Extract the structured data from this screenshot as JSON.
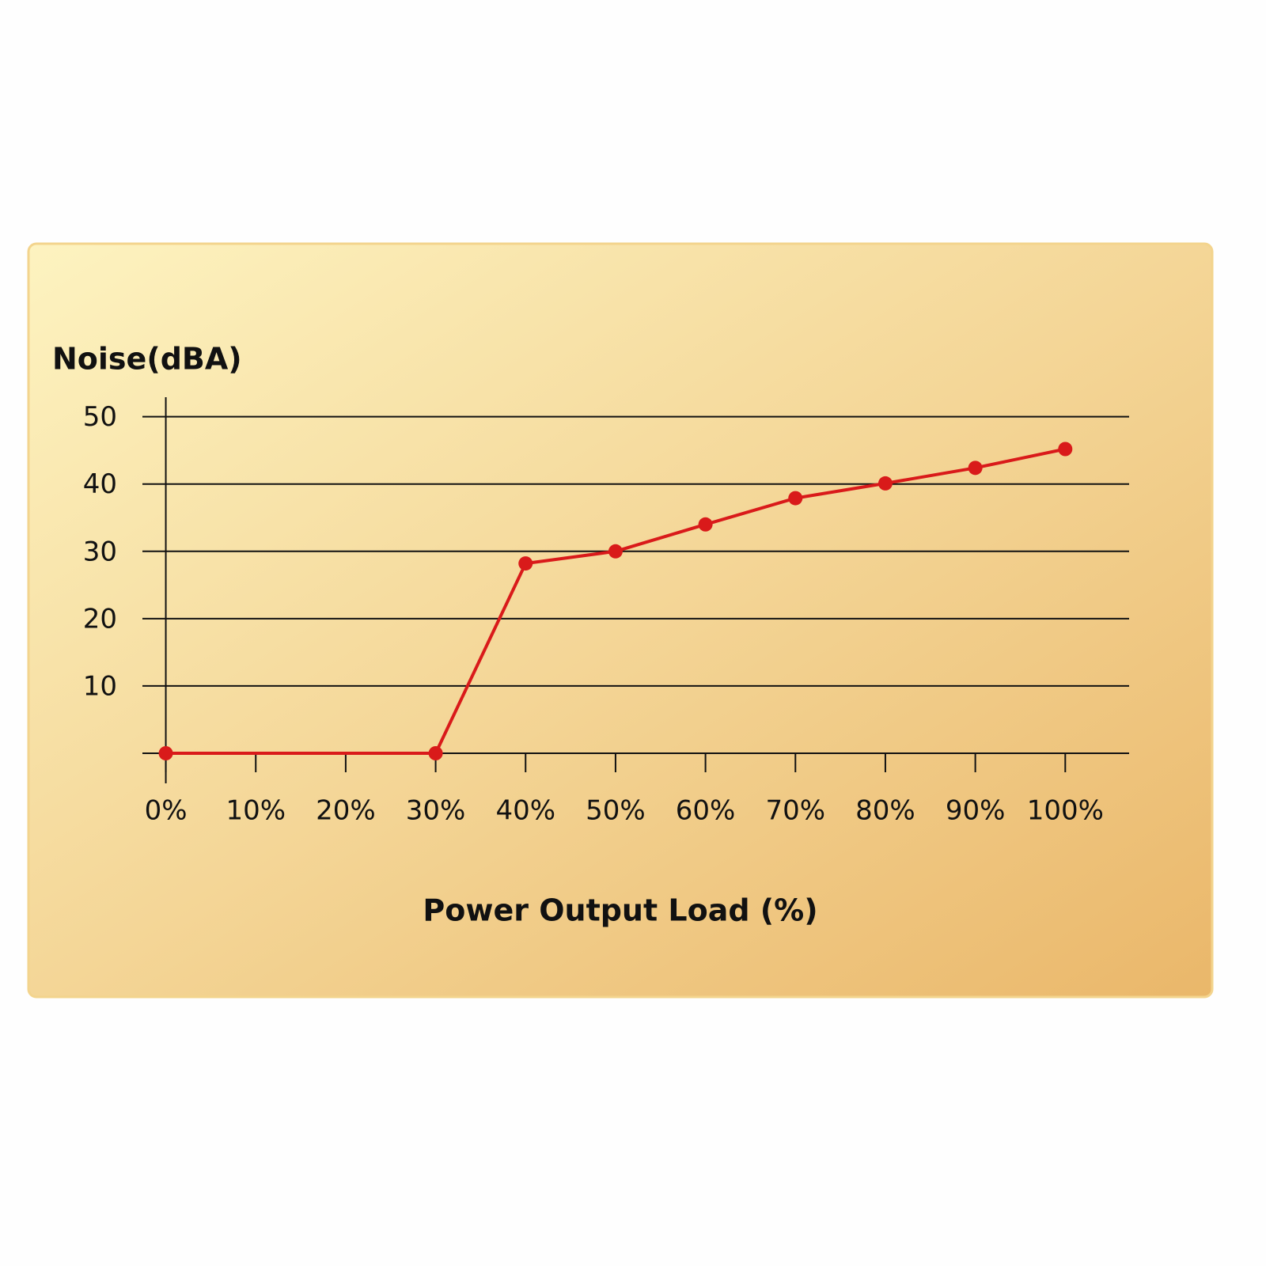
{
  "chart_data": {
    "type": "line",
    "y_axis_label": "Noise(dBA)",
    "x_axis_label": "Power Output Load (%)",
    "x": [
      0,
      30,
      40,
      50,
      60,
      70,
      80,
      90,
      100
    ],
    "series": [
      {
        "color": "#d91a1a",
        "values": [
          0,
          0,
          28.2,
          30.0,
          34.0,
          37.9,
          40.1,
          42.4,
          45.2
        ]
      }
    ],
    "xlim": [
      -2.6,
      107.1
    ],
    "xticks": [
      {
        "value": 0,
        "label": "0%"
      },
      {
        "value": 10,
        "label": "10%"
      },
      {
        "value": 20,
        "label": "20%"
      },
      {
        "value": 30,
        "label": "30%"
      },
      {
        "value": 40,
        "label": "40%"
      },
      {
        "value": 50,
        "label": "50%"
      },
      {
        "value": 60,
        "label": "60%"
      },
      {
        "value": 70,
        "label": "70%"
      },
      {
        "value": 80,
        "label": "80%"
      },
      {
        "value": 90,
        "label": "90%"
      },
      {
        "value": 100,
        "label": "100%"
      }
    ],
    "ylim": [
      0,
      52.9
    ],
    "yticks": [
      10,
      20,
      30,
      40,
      50
    ],
    "grid": true
  }
}
